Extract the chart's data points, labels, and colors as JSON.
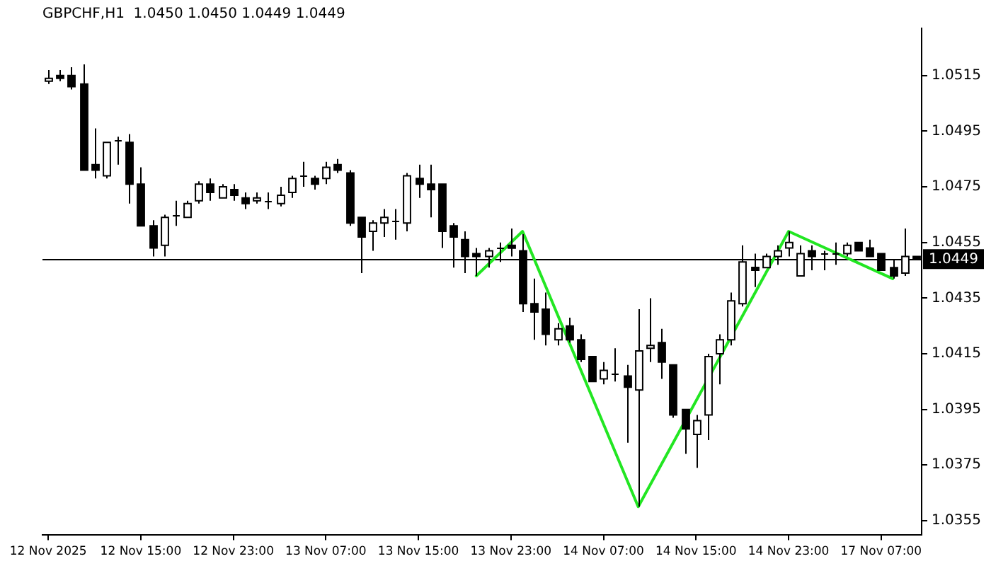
{
  "chart_data": {
    "type": "candlestick",
    "title": "GBPCHF,H1  1.0450 1.0450 1.0449 1.0449",
    "categories": [
      "12 Nov 2025",
      null,
      null,
      null,
      null,
      null,
      null,
      null,
      "12 Nov 15:00",
      null,
      null,
      null,
      null,
      null,
      null,
      null,
      "12 Nov 23:00",
      null,
      null,
      null,
      null,
      null,
      null,
      null,
      "13 Nov 07:00",
      null,
      null,
      null,
      null,
      null,
      null,
      null,
      "13 Nov 15:00",
      null,
      null,
      null,
      null,
      null,
      null,
      null,
      "13 Nov 23:00",
      null,
      null,
      null,
      null,
      null,
      null,
      null,
      "14 Nov 07:00",
      null,
      null,
      null,
      null,
      null,
      null,
      null,
      "14 Nov 15:00",
      null,
      null,
      null,
      null,
      null,
      null,
      null,
      "14 Nov 23:00",
      null,
      null,
      null,
      null,
      null,
      null,
      null,
      "17 Nov 07:00",
      null,
      null,
      null
    ],
    "ohlc": [
      [
        1.0513,
        1.0517,
        1.0512,
        1.0514
      ],
      [
        1.0515,
        1.0517,
        1.0513,
        1.0514
      ],
      [
        1.0515,
        1.0518,
        1.051,
        1.0511
      ],
      [
        1.0512,
        1.0519,
        1.0481,
        1.0481
      ],
      [
        1.0483,
        1.0496,
        1.0478,
        1.0481
      ],
      [
        1.0479,
        1.0491,
        1.0478,
        1.0491
      ],
      [
        1.0492,
        1.0493,
        1.0483,
        1.0492
      ],
      [
        1.0491,
        1.0494,
        1.0469,
        1.0476
      ],
      [
        1.0476,
        1.0482,
        1.0461,
        1.0461
      ],
      [
        1.0461,
        1.0463,
        1.045,
        1.0453
      ],
      [
        1.0454,
        1.0465,
        1.045,
        1.0464
      ],
      [
        1.0465,
        1.047,
        1.0461,
        1.0465
      ],
      [
        1.0464,
        1.047,
        1.0464,
        1.0469
      ],
      [
        1.047,
        1.0477,
        1.0469,
        1.0476
      ],
      [
        1.0476,
        1.0478,
        1.047,
        1.0473
      ],
      [
        1.0471,
        1.0476,
        1.0471,
        1.0475
      ],
      [
        1.0474,
        1.0476,
        1.047,
        1.0472
      ],
      [
        1.0471,
        1.0473,
        1.0467,
        1.0469
      ],
      [
        1.047,
        1.0473,
        1.0469,
        1.0471
      ],
      [
        1.047,
        1.0473,
        1.0467,
        1.047
      ],
      [
        1.0469,
        1.0475,
        1.0468,
        1.0472
      ],
      [
        1.0473,
        1.0479,
        1.0471,
        1.0478
      ],
      [
        1.0479,
        1.0484,
        1.0475,
        1.0479
      ],
      [
        1.0478,
        1.0479,
        1.0474,
        1.0476
      ],
      [
        1.0478,
        1.0484,
        1.0476,
        1.0482
      ],
      [
        1.0483,
        1.0485,
        1.048,
        1.0481
      ],
      [
        1.048,
        1.0481,
        1.0461,
        1.0462
      ],
      [
        1.0464,
        1.0464,
        1.0444,
        1.0457
      ],
      [
        1.0459,
        1.0463,
        1.0452,
        1.0462
      ],
      [
        1.0462,
        1.0467,
        1.0457,
        1.0464
      ],
      [
        1.0463,
        1.0467,
        1.0456,
        1.0463
      ],
      [
        1.0462,
        1.048,
        1.0459,
        1.0479
      ],
      [
        1.0478,
        1.0483,
        1.0471,
        1.0476
      ],
      [
        1.0476,
        1.0483,
        1.0464,
        1.0474
      ],
      [
        1.0476,
        1.0476,
        1.0453,
        1.0459
      ],
      [
        1.0461,
        1.0462,
        1.0446,
        1.0457
      ],
      [
        1.0456,
        1.0459,
        1.0444,
        1.045
      ],
      [
        1.0451,
        1.0453,
        1.0443,
        1.045
      ],
      [
        1.045,
        1.0453,
        1.0446,
        1.0452
      ],
      [
        1.0453,
        1.0455,
        1.0448,
        1.0453
      ],
      [
        1.0454,
        1.046,
        1.045,
        1.0453
      ],
      [
        1.0452,
        1.0458,
        1.043,
        1.0433
      ],
      [
        1.0433,
        1.0442,
        1.042,
        1.043
      ],
      [
        1.0431,
        1.0437,
        1.0418,
        1.0422
      ],
      [
        1.042,
        1.0426,
        1.0418,
        1.0424
      ],
      [
        1.0425,
        1.0428,
        1.0419,
        1.042
      ],
      [
        1.042,
        1.0422,
        1.0412,
        1.0413
      ],
      [
        1.0414,
        1.0414,
        1.0405,
        1.0405
      ],
      [
        1.0406,
        1.0412,
        1.0404,
        1.0409
      ],
      [
        1.0408,
        1.0417,
        1.0405,
        1.0408
      ],
      [
        1.0407,
        1.0411,
        1.0383,
        1.0403
      ],
      [
        1.0402,
        1.0431,
        1.036,
        1.0416
      ],
      [
        1.0417,
        1.0435,
        1.0412,
        1.0418
      ],
      [
        1.0419,
        1.0424,
        1.0406,
        1.0412
      ],
      [
        1.0411,
        1.0411,
        1.0392,
        1.0393
      ],
      [
        1.0395,
        1.0395,
        1.0379,
        1.0388
      ],
      [
        1.0386,
        1.0393,
        1.0374,
        1.0391
      ],
      [
        1.0393,
        1.0415,
        1.0384,
        1.0414
      ],
      [
        1.0415,
        1.0422,
        1.0404,
        1.042
      ],
      [
        1.042,
        1.0437,
        1.0418,
        1.0434
      ],
      [
        1.0433,
        1.0454,
        1.0432,
        1.0448
      ],
      [
        1.0446,
        1.0451,
        1.0439,
        1.0445
      ],
      [
        1.0446,
        1.0451,
        1.0446,
        1.045
      ],
      [
        1.045,
        1.0454,
        1.0447,
        1.0452
      ],
      [
        1.0453,
        1.0459,
        1.045,
        1.0455
      ],
      [
        1.0443,
        1.0454,
        1.0443,
        1.0451
      ],
      [
        1.0452,
        1.0454,
        1.0445,
        1.045
      ],
      [
        1.0451,
        1.0452,
        1.0445,
        1.0451
      ],
      [
        1.0451,
        1.0455,
        1.0447,
        1.0451
      ],
      [
        1.0451,
        1.0455,
        1.045,
        1.0454
      ],
      [
        1.0455,
        1.0455,
        1.0452,
        1.0452
      ],
      [
        1.0453,
        1.0456,
        1.045,
        1.045
      ],
      [
        1.0451,
        1.0451,
        1.0445,
        1.0445
      ],
      [
        1.0446,
        1.0449,
        1.0442,
        1.0443
      ],
      [
        1.0444,
        1.046,
        1.0443,
        1.045
      ],
      [
        1.045,
        1.045,
        1.0449,
        1.0449
      ]
    ],
    "series": [
      {
        "type": "line",
        "color": "#22e622",
        "values": [
          null,
          null,
          null,
          null,
          null,
          null,
          null,
          null,
          null,
          null,
          null,
          null,
          null,
          null,
          null,
          null,
          null,
          null,
          null,
          null,
          null,
          null,
          null,
          null,
          null,
          null,
          null,
          null,
          null,
          null,
          null,
          null,
          null,
          null,
          null,
          null,
          null,
          1.0443,
          null,
          null,
          null,
          1.0459,
          null,
          null,
          null,
          null,
          null,
          null,
          null,
          null,
          null,
          1.036,
          null,
          null,
          null,
          null,
          null,
          null,
          null,
          null,
          null,
          null,
          null,
          null,
          1.0459,
          null,
          null,
          null,
          null,
          null,
          null,
          null,
          null,
          1.0442,
          null,
          null
        ]
      }
    ],
    "ylim": [
      1.035,
      1.0532
    ],
    "yticks": [
      1.0355,
      1.0375,
      1.0395,
      1.0415,
      1.0435,
      1.0455,
      1.0475,
      1.0495,
      1.0515
    ],
    "ref_lines": [
      {
        "axis": "y",
        "value": 1.0449,
        "label": "1.0449",
        "color": "#000000"
      }
    ]
  }
}
